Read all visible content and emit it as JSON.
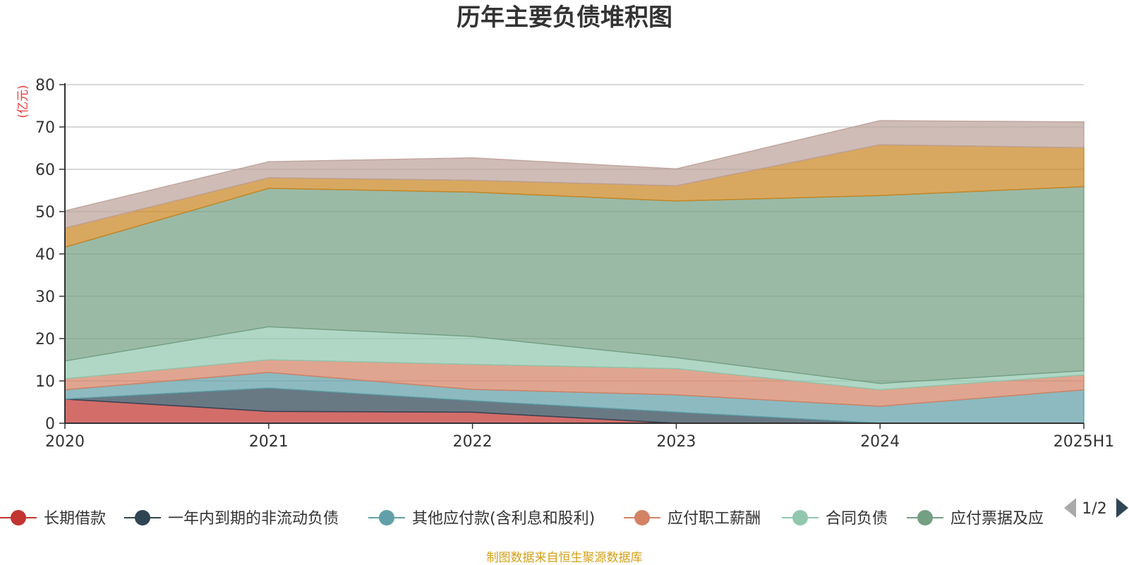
{
  "chart_data": {
    "type": "area",
    "stacked": true,
    "title": "历年主要负债堆积图",
    "unit_label": "(亿元)",
    "x": [
      "2020",
      "2021",
      "2022",
      "2023",
      "2024",
      "2025H1"
    ],
    "ylim": [
      0,
      80
    ],
    "yticks": [
      0,
      10,
      20,
      30,
      40,
      50,
      60,
      70,
      80
    ],
    "grid": true,
    "legend_position": "bottom",
    "legend_page": "1/2",
    "series": [
      {
        "name": "长期借款",
        "color": "#c23531",
        "values": [
          5.7,
          2.8,
          2.6,
          0.0,
          0.0,
          0.0
        ]
      },
      {
        "name": "一年内到期的非流动负债",
        "color": "#2f4554",
        "values": [
          0.0,
          5.5,
          2.7,
          2.6,
          0.0,
          0.0
        ]
      },
      {
        "name": "其他应付款(含利息和股利)",
        "color": "#61a0a8",
        "values": [
          2.2,
          3.7,
          2.7,
          4.1,
          4.0,
          7.9
        ]
      },
      {
        "name": "应付职工薪酬",
        "color": "#d48265",
        "values": [
          2.6,
          3.0,
          5.9,
          6.2,
          3.9,
          3.5
        ]
      },
      {
        "name": "合同负债",
        "color": "#91c7ae",
        "values": [
          4.2,
          7.8,
          6.6,
          2.6,
          1.5,
          1.0
        ]
      },
      {
        "name": "应付票据及应付账款",
        "legend_display": "应付票据及应",
        "color": "#749f83",
        "values": [
          26.9,
          32.7,
          34.1,
          37.0,
          44.4,
          43.5
        ]
      },
      {
        "name": "",
        "color": "#ca8622",
        "values": [
          4.5,
          2.5,
          2.8,
          3.6,
          12.0,
          9.2
        ]
      },
      {
        "name": "",
        "color": "#bda29a",
        "values": [
          4.1,
          3.8,
          5.3,
          4.0,
          5.7,
          6.1
        ]
      }
    ]
  },
  "source_note": "制图数据来自恒生聚源数据库"
}
